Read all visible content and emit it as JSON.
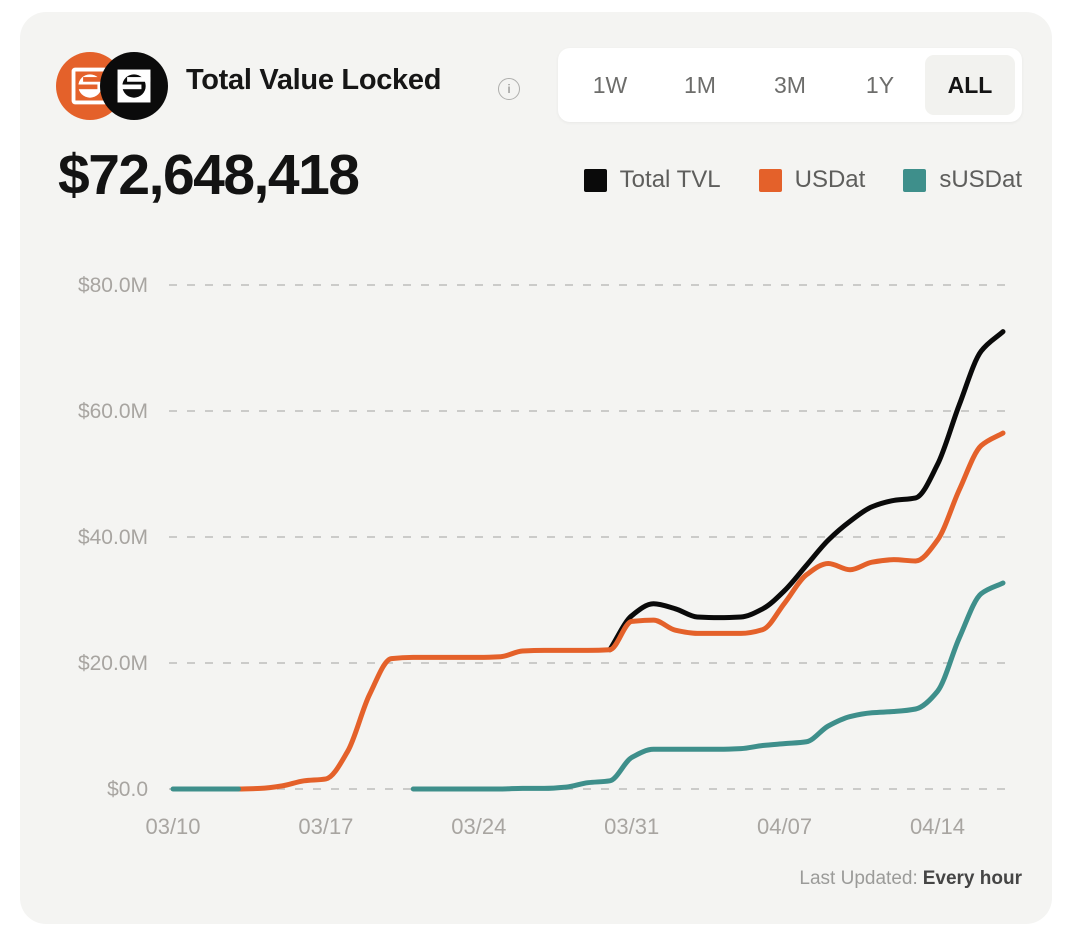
{
  "page": {
    "background": "#ffffff",
    "card_background": "#f4f4f2"
  },
  "header": {
    "title": "Total Value Locked",
    "info_icon": "i",
    "total_value": "$72,648,418",
    "logos": [
      {
        "name": "usdat-coin",
        "color": "#e4612a"
      },
      {
        "name": "susdat-coin",
        "color": "#0b0b0b"
      }
    ],
    "range_buttons": [
      {
        "label": "1W",
        "active": false
      },
      {
        "label": "1M",
        "active": false
      },
      {
        "label": "3M",
        "active": false
      },
      {
        "label": "1Y",
        "active": false
      },
      {
        "label": "ALL",
        "active": true
      }
    ]
  },
  "legend": [
    {
      "label": "Total TVL",
      "color": "#0a0a0a"
    },
    {
      "label": "USDat",
      "color": "#e4612a"
    },
    {
      "label": "sUSDat",
      "color": "#3e8f8b"
    }
  ],
  "footer": {
    "last_updated_label": "Last Updated:",
    "last_updated_value": "Every hour"
  },
  "chart_data": {
    "type": "line",
    "title": "Total Value Locked",
    "unit": "millions USD",
    "ylim": [
      0,
      80
    ],
    "grid": "dashed-horizontal",
    "legend_position": "top-right",
    "y_ticks": [
      {
        "value": 0,
        "label": "$0.0"
      },
      {
        "value": 20,
        "label": "$20.0M"
      },
      {
        "value": 40,
        "label": "$40.0M"
      },
      {
        "value": 60,
        "label": "$60.0M"
      },
      {
        "value": 80,
        "label": "$80.0M"
      }
    ],
    "x": [
      "03/10",
      "03/11",
      "03/12",
      "03/13",
      "03/14",
      "03/15",
      "03/16",
      "03/17",
      "03/18",
      "03/19",
      "03/20",
      "03/21",
      "03/22",
      "03/23",
      "03/24",
      "03/25",
      "03/26",
      "03/27",
      "03/28",
      "03/29",
      "03/30",
      "03/31",
      "04/01",
      "04/02",
      "04/03",
      "04/04",
      "04/05",
      "04/06",
      "04/07",
      "04/08",
      "04/09",
      "04/10",
      "04/11",
      "04/12",
      "04/13",
      "04/14",
      "04/15",
      "04/16",
      "04/17"
    ],
    "x_ticks": [
      {
        "index": 0,
        "label": "03/10"
      },
      {
        "index": 7,
        "label": "03/17"
      },
      {
        "index": 14,
        "label": "03/24"
      },
      {
        "index": 21,
        "label": "03/31"
      },
      {
        "index": 28,
        "label": "04/07"
      },
      {
        "index": 35,
        "label": "04/14"
      }
    ],
    "series": [
      {
        "name": "Total TVL",
        "color": "#0a0a0a",
        "values": [
          null,
          null,
          null,
          null,
          null,
          null,
          null,
          null,
          null,
          null,
          null,
          null,
          null,
          null,
          null,
          null,
          null,
          null,
          null,
          null,
          22.1,
          27.5,
          29.4,
          28.6,
          27.3,
          27.2,
          27.3,
          28.6,
          31.5,
          35.5,
          39.5,
          42.5,
          44.8,
          45.8,
          46.2,
          51.5,
          61.0,
          69.5,
          72.6
        ]
      },
      {
        "name": "USDat",
        "color": "#e4612a",
        "values": [
          null,
          null,
          null,
          0,
          0.1,
          0.5,
          1.3,
          1.6,
          6.0,
          15.0,
          20.7,
          20.9,
          20.9,
          20.9,
          20.9,
          21.0,
          21.9,
          22.0,
          22.0,
          22.0,
          22.1,
          26.6,
          26.8,
          25.2,
          24.7,
          24.7,
          24.7,
          25.3,
          29.5,
          34.0,
          35.8,
          34.8,
          36.0,
          36.4,
          36.2,
          39.5,
          47.5,
          54.5,
          56.5
        ]
      },
      {
        "name": "sUSDat",
        "color": "#3e8f8b",
        "values": [
          0,
          0,
          0,
          0,
          null,
          null,
          null,
          null,
          null,
          null,
          null,
          0,
          0,
          0,
          0,
          0,
          0.1,
          0.1,
          0.3,
          1.0,
          1.3,
          5.0,
          6.3,
          6.3,
          6.3,
          6.3,
          6.4,
          6.9,
          7.2,
          7.5,
          10.0,
          11.5,
          12.1,
          12.3,
          12.7,
          15.5,
          24.0,
          31.0,
          32.7
        ]
      }
    ]
  }
}
